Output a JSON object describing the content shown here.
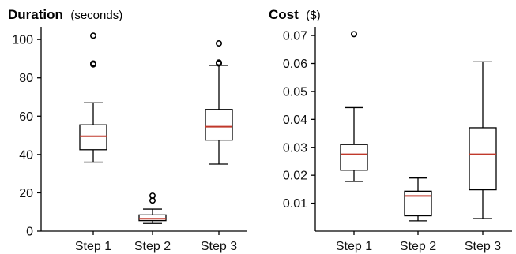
{
  "chart_data": [
    {
      "type": "box",
      "title": "Duration",
      "unit": "(seconds)",
      "categories": [
        "Step 1",
        "Step 2",
        "Step 3"
      ],
      "ylim": [
        0,
        105
      ],
      "yticks": [
        0,
        20,
        40,
        60,
        80,
        100
      ],
      "ytick_labels": [
        "0",
        "20",
        "40",
        "60",
        "80",
        "100"
      ],
      "median_color": "#c0392b",
      "boxes": [
        {
          "category": "Step 1",
          "whisker_low": 36,
          "q1": 42.5,
          "median": 49.5,
          "q3": 55.5,
          "whisker_high": 67,
          "outliers": [
            87,
            87.5,
            102
          ]
        },
        {
          "category": "Step 2",
          "whisker_low": 4,
          "q1": 5.5,
          "median": 6.5,
          "q3": 8.5,
          "whisker_high": 11.5,
          "outliers": [
            16,
            18.5
          ]
        },
        {
          "category": "Step 3",
          "whisker_low": 35,
          "q1": 47.5,
          "median": 54.5,
          "q3": 63.5,
          "whisker_high": 86.5,
          "outliers": [
            87.5,
            88,
            98
          ]
        }
      ]
    },
    {
      "type": "box",
      "title": "Cost",
      "unit": "($)",
      "categories": [
        "Step 1",
        "Step 2",
        "Step 3"
      ],
      "ylim": [
        0,
        0.072
      ],
      "yticks": [
        0.01,
        0.02,
        0.03,
        0.04,
        0.05,
        0.06,
        0.07
      ],
      "ytick_labels": [
        "0.01",
        "0.02",
        "0.03",
        "0.04",
        "0.05",
        "0.06",
        "0.07"
      ],
      "median_color": "#c0392b",
      "boxes": [
        {
          "category": "Step 1",
          "whisker_low": 0.0178,
          "q1": 0.0218,
          "median": 0.0275,
          "q3": 0.031,
          "whisker_high": 0.0442,
          "outliers": [
            0.0705
          ]
        },
        {
          "category": "Step 2",
          "whisker_low": 0.0037,
          "q1": 0.0055,
          "median": 0.0126,
          "q3": 0.0143,
          "whisker_high": 0.019,
          "outliers": []
        },
        {
          "category": "Step 3",
          "whisker_low": 0.0045,
          "q1": 0.0148,
          "median": 0.0275,
          "q3": 0.037,
          "whisker_high": 0.0606,
          "outliers": []
        }
      ]
    }
  ]
}
